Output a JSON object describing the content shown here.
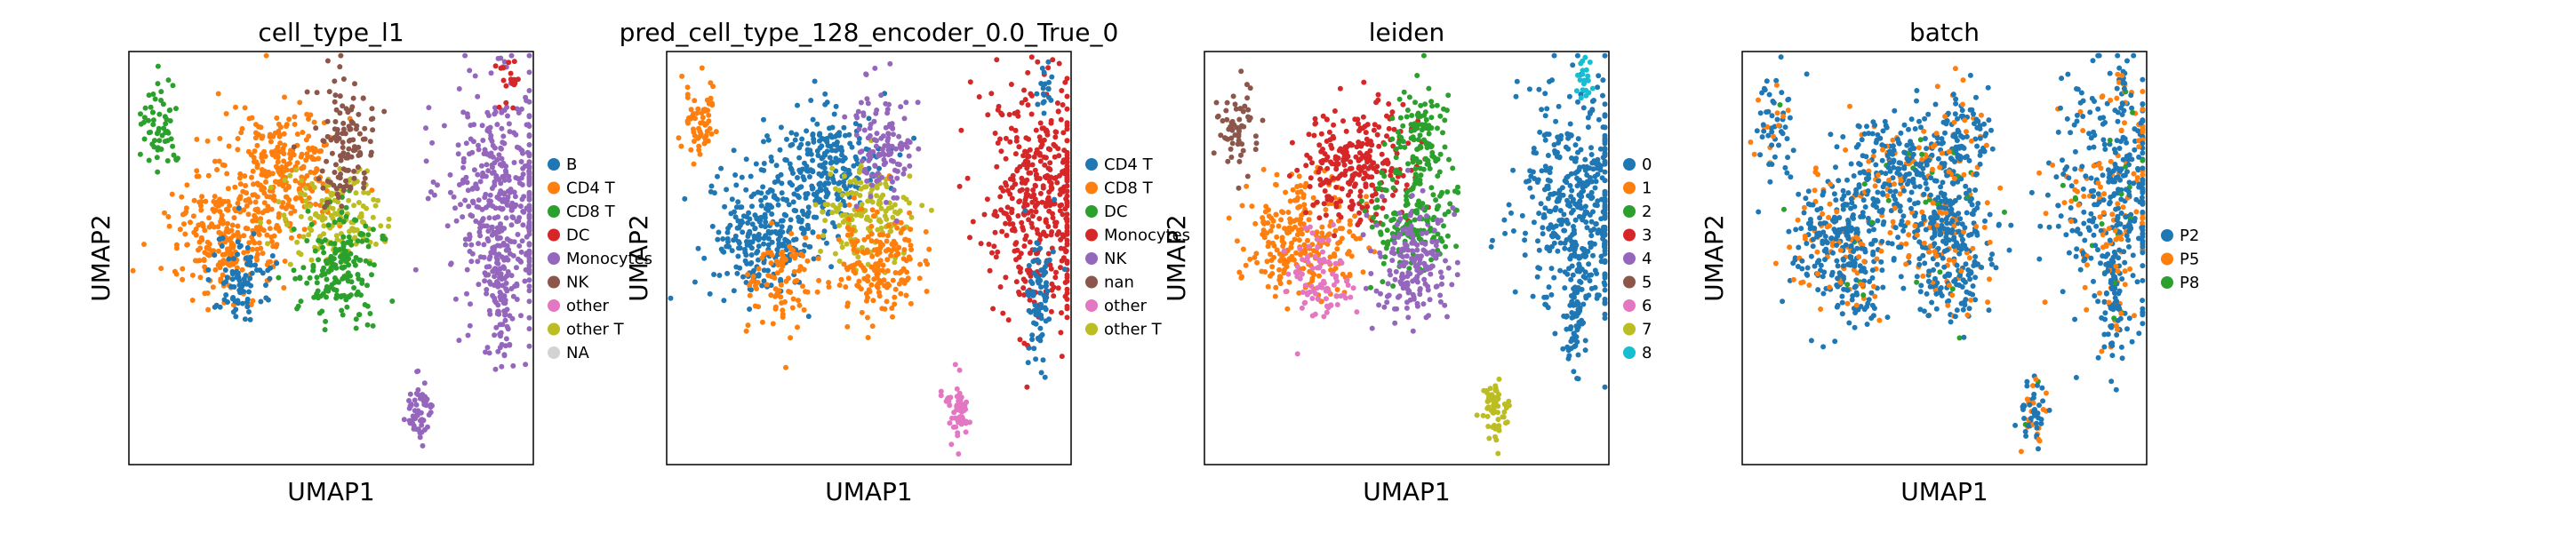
{
  "chart_data": [
    {
      "type": "scatter",
      "title": "cell_type_l1",
      "xlabel": "UMAP1",
      "ylabel": "UMAP2",
      "grid": false,
      "ticks": false,
      "legend_position": "right",
      "legend": [
        {
          "label": "B",
          "color": "#1f77b4"
        },
        {
          "label": "CD4 T",
          "color": "#ff7f0e"
        },
        {
          "label": "CD8 T",
          "color": "#2ca02c"
        },
        {
          "label": "DC",
          "color": "#d62728"
        },
        {
          "label": "Monocytes",
          "color": "#9467bd"
        },
        {
          "label": "NK",
          "color": "#8c564b"
        },
        {
          "label": "other",
          "color": "#e377c2"
        },
        {
          "label": "other T",
          "color": "#bcbd22"
        },
        {
          "label": "NA",
          "color": "#d3d3d3"
        }
      ]
    },
    {
      "type": "scatter",
      "title": "pred_cell_type_128_encoder_0.0_True_0",
      "xlabel": "UMAP1",
      "ylabel": "UMAP2",
      "grid": false,
      "ticks": false,
      "legend_position": "right",
      "legend": [
        {
          "label": "CD4 T",
          "color": "#1f77b4"
        },
        {
          "label": "CD8 T",
          "color": "#ff7f0e"
        },
        {
          "label": "DC",
          "color": "#2ca02c"
        },
        {
          "label": "Monocytes",
          "color": "#d62728"
        },
        {
          "label": "NK",
          "color": "#9467bd"
        },
        {
          "label": "nan",
          "color": "#8c564b"
        },
        {
          "label": "other",
          "color": "#e377c2"
        },
        {
          "label": "other T",
          "color": "#bcbd22"
        }
      ]
    },
    {
      "type": "scatter",
      "title": "leiden",
      "xlabel": "UMAP1",
      "ylabel": "UMAP2",
      "grid": false,
      "ticks": false,
      "legend_position": "right",
      "legend": [
        {
          "label": "0",
          "color": "#1f77b4"
        },
        {
          "label": "1",
          "color": "#ff7f0e"
        },
        {
          "label": "2",
          "color": "#2ca02c"
        },
        {
          "label": "3",
          "color": "#d62728"
        },
        {
          "label": "4",
          "color": "#9467bd"
        },
        {
          "label": "5",
          "color": "#8c564b"
        },
        {
          "label": "6",
          "color": "#e377c2"
        },
        {
          "label": "7",
          "color": "#bcbd22"
        },
        {
          "label": "8",
          "color": "#17becf"
        }
      ]
    },
    {
      "type": "scatter",
      "title": "batch",
      "xlabel": "UMAP1",
      "ylabel": "UMAP2",
      "grid": false,
      "ticks": false,
      "legend_position": "right",
      "legend": [
        {
          "label": "P2",
          "color": "#1f77b4"
        },
        {
          "label": "P5",
          "color": "#ff7f0e"
        },
        {
          "label": "P8",
          "color": "#2ca02c"
        }
      ]
    }
  ]
}
